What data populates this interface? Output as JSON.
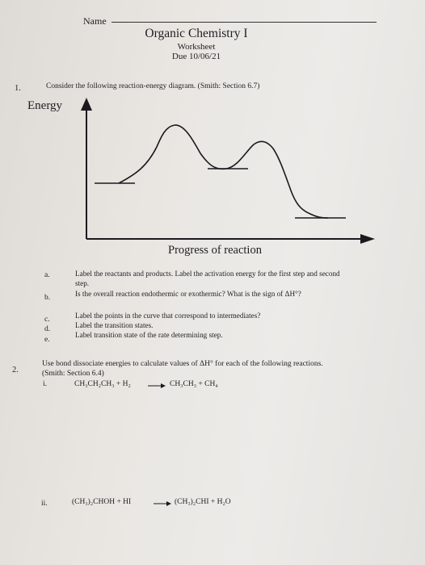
{
  "header": {
    "name_label": "Name",
    "course_title": "Organic Chemistry I",
    "worksheet_label": "Worksheet",
    "due_date": "Due 10/06/21"
  },
  "question1": {
    "number": "1.",
    "prompt": "Consider the following reaction-energy diagram. (Smith: Section 6.7)",
    "diagram": {
      "y_label": "Energy",
      "x_label": "Progress of reaction"
    },
    "parts": [
      {
        "letter": "a.",
        "lines": [
          "Label the reactants and products. Label the activation energy for the first step and second",
          "step."
        ]
      },
      {
        "letter": "b.",
        "lines": [
          "Is the overall reaction endothermic or exothermic? What is the sign of ΔH°?"
        ]
      },
      {
        "letter": "c.",
        "lines": [
          "Label the points in the curve that correspond to intermediates?"
        ]
      },
      {
        "letter": "d.",
        "lines": [
          "Label the transition states."
        ]
      },
      {
        "letter": "e.",
        "lines": [
          "Label transition state of the rate determining step."
        ]
      }
    ]
  },
  "question2": {
    "number": "2.",
    "prompt": "Use bond dissociate energies to calculate values of ΔH° for each of the following reactions.",
    "section": "(Smith: Section 6.4)",
    "reactions": [
      {
        "label": "i.",
        "reactants": "CH₃CH₂CH₃ + H₂",
        "products": "CH₃CH₃ + CH₄"
      },
      {
        "label": "ii.",
        "reactants": "(CH₃)₂CHOH + HI",
        "products": "(CH₃)₂CHI + H₂O"
      }
    ]
  }
}
